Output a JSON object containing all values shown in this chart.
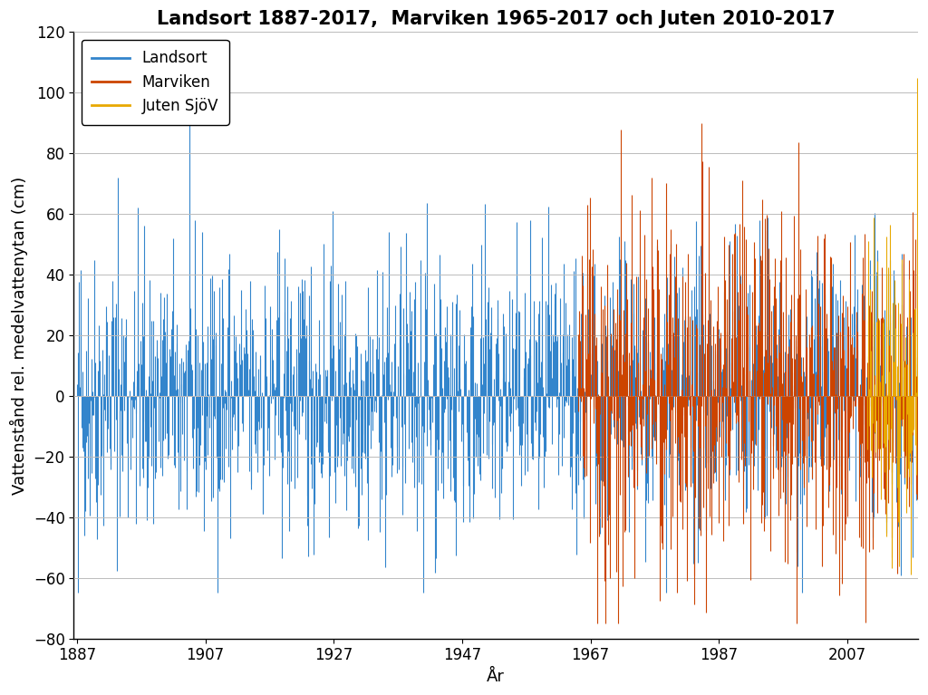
{
  "title": "Landsort 1887-2017,  Marviken 1965-2017 och Juten 2010-2017",
  "xlabel": "År",
  "ylabel": "Vattenstånd rel. medelvattenytan (cm)",
  "color_landsort": "#3385CC",
  "color_marviken": "#CC4400",
  "color_juten": "#E8A800",
  "legend_labels": [
    "Landsort",
    "Marviken",
    "Juten SjöV"
  ],
  "ylim": [
    -80,
    120
  ],
  "xlim_left": 1886.5,
  "xlim_right": 2018.0,
  "xticks": [
    1887,
    1907,
    1927,
    1947,
    1967,
    1987,
    2007
  ],
  "yticks": [
    -80,
    -60,
    -40,
    -20,
    0,
    20,
    40,
    60,
    80,
    100,
    120
  ],
  "landsort_start": 1887,
  "landsort_end": 2017,
  "marviken_start": 1965,
  "marviken_end": 2017,
  "juten_start": 2010,
  "juten_end": 2017,
  "seed": 42,
  "background_color": "#FFFFFF",
  "grid_color": "#BBBBBB",
  "title_fontsize": 15,
  "label_fontsize": 13,
  "tick_fontsize": 12,
  "legend_fontsize": 12,
  "linewidth": 0.8
}
